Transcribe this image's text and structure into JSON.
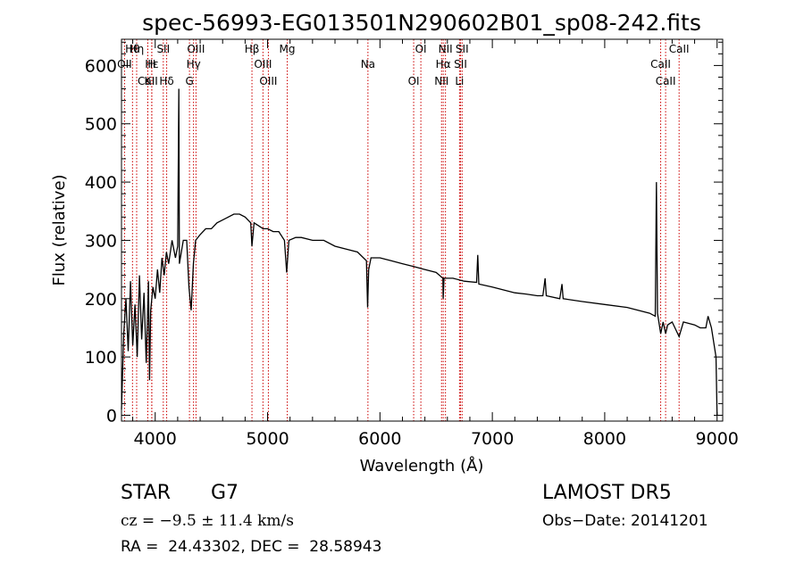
{
  "chart_data": {
    "type": "line",
    "title": "spec-56993-EG013501N290602B01_sp08-242.fits",
    "xlabel": "Wavelength (Å)",
    "ylabel": "Flux (relative)",
    "xlim": [
      3700,
      9050
    ],
    "ylim": [
      -10,
      645
    ],
    "x_ticks": [
      "4000",
      "5000",
      "6000",
      "7000",
      "8000",
      "9000"
    ],
    "y_ticks": [
      "0",
      "100",
      "200",
      "300",
      "400",
      "500",
      "600"
    ],
    "grid": false,
    "series": [
      {
        "points": [
          [
            3700,
            10
          ],
          [
            3720,
            140
          ],
          [
            3740,
            200
          ],
          [
            3760,
            110
          ],
          [
            3780,
            230
          ],
          [
            3800,
            120
          ],
          [
            3820,
            190
          ],
          [
            3840,
            100
          ],
          [
            3860,
            240
          ],
          [
            3880,
            130
          ],
          [
            3900,
            210
          ],
          [
            3920,
            90
          ],
          [
            3940,
            230
          ],
          [
            3950,
            60
          ],
          [
            3960,
            180
          ],
          [
            3980,
            220
          ],
          [
            4000,
            200
          ],
          [
            4020,
            250
          ],
          [
            4040,
            210
          ],
          [
            4060,
            270
          ],
          [
            4080,
            240
          ],
          [
            4100,
            280
          ],
          [
            4120,
            260
          ],
          [
            4150,
            300
          ],
          [
            4180,
            270
          ],
          [
            4200,
            290
          ],
          [
            4210,
            560
          ],
          [
            4215,
            260
          ],
          [
            4250,
            300
          ],
          [
            4280,
            300
          ],
          [
            4300,
            220
          ],
          [
            4320,
            180
          ],
          [
            4340,
            260
          ],
          [
            4360,
            300
          ],
          [
            4400,
            310
          ],
          [
            4450,
            320
          ],
          [
            4500,
            320
          ],
          [
            4550,
            330
          ],
          [
            4600,
            335
          ],
          [
            4650,
            340
          ],
          [
            4700,
            345
          ],
          [
            4750,
            345
          ],
          [
            4800,
            340
          ],
          [
            4850,
            330
          ],
          [
            4861,
            290
          ],
          [
            4880,
            330
          ],
          [
            4920,
            325
          ],
          [
            4960,
            320
          ],
          [
            5000,
            320
          ],
          [
            5050,
            315
          ],
          [
            5100,
            315
          ],
          [
            5150,
            300
          ],
          [
            5170,
            245
          ],
          [
            5190,
            300
          ],
          [
            5250,
            305
          ],
          [
            5300,
            305
          ],
          [
            5400,
            300
          ],
          [
            5500,
            300
          ],
          [
            5600,
            290
          ],
          [
            5700,
            285
          ],
          [
            5800,
            280
          ],
          [
            5880,
            265
          ],
          [
            5890,
            185
          ],
          [
            5900,
            250
          ],
          [
            5920,
            270
          ],
          [
            6000,
            270
          ],
          [
            6100,
            265
          ],
          [
            6200,
            260
          ],
          [
            6300,
            255
          ],
          [
            6400,
            250
          ],
          [
            6500,
            245
          ],
          [
            6560,
            235
          ],
          [
            6563,
            200
          ],
          [
            6570,
            235
          ],
          [
            6650,
            235
          ],
          [
            6750,
            230
          ],
          [
            6860,
            228
          ],
          [
            6870,
            275
          ],
          [
            6880,
            225
          ],
          [
            7000,
            220
          ],
          [
            7100,
            215
          ],
          [
            7200,
            210
          ],
          [
            7300,
            208
          ],
          [
            7400,
            205
          ],
          [
            7450,
            205
          ],
          [
            7470,
            235
          ],
          [
            7480,
            205
          ],
          [
            7600,
            200
          ],
          [
            7620,
            225
          ],
          [
            7630,
            200
          ],
          [
            7800,
            195
          ],
          [
            8000,
            190
          ],
          [
            8200,
            185
          ],
          [
            8400,
            175
          ],
          [
            8450,
            170
          ],
          [
            8460,
            400
          ],
          [
            8470,
            175
          ],
          [
            8498,
            140
          ],
          [
            8520,
            160
          ],
          [
            8542,
            140
          ],
          [
            8560,
            155
          ],
          [
            8600,
            160
          ],
          [
            8662,
            135
          ],
          [
            8700,
            160
          ],
          [
            8800,
            155
          ],
          [
            8850,
            150
          ],
          [
            8900,
            150
          ],
          [
            8920,
            170
          ],
          [
            8950,
            150
          ],
          [
            8990,
            100
          ],
          [
            9000,
            0
          ]
        ]
      }
    ],
    "lines": [
      {
        "label": "Hθ",
        "x": 3798
      },
      {
        "label": "OII",
        "x": 3727
      },
      {
        "label": "CaII",
        "x": 3934
      },
      {
        "label": "Hη",
        "x": 3835
      },
      {
        "label": "Hε",
        "x": 3970
      },
      {
        "label": "K",
        "x": 3934
      },
      {
        "label": "SII",
        "x": 4072
      },
      {
        "label": "H",
        "x": 3969
      },
      {
        "label": "Hδ",
        "x": 4102
      },
      {
        "label": "OIII",
        "x": 4363
      },
      {
        "label": "Hγ",
        "x": 4341
      },
      {
        "label": "G",
        "x": 4305
      },
      {
        "label": "Hβ",
        "x": 4861
      },
      {
        "label": "OIII",
        "x": 4959
      },
      {
        "label": "OIII",
        "x": 5007
      },
      {
        "label": "Mg",
        "x": 5175
      },
      {
        "label": "Na",
        "x": 5893
      },
      {
        "label": "OI",
        "x": 6300
      },
      {
        "label": "OI",
        "x": 6364
      },
      {
        "label": "Hα",
        "x": 6563
      },
      {
        "label": "NII",
        "x": 6548
      },
      {
        "label": "NII",
        "x": 6583
      },
      {
        "label": "SII",
        "x": 6717
      },
      {
        "label": "Li",
        "x": 6708
      },
      {
        "label": "SII",
        "x": 6731
      },
      {
        "label": "CaII",
        "x": 8498
      },
      {
        "label": "CaII",
        "x": 8542
      },
      {
        "label": "CaII",
        "x": 8662
      }
    ]
  },
  "info": {
    "class": "STAR",
    "subclass": "G7",
    "survey": "LAMOST DR5",
    "redshift": "cz = −9.5 ± 11.4 km/s",
    "obs_date": "Obs−Date: 20141201",
    "coords": "RA =  24.43302, DEC =  28.58943"
  },
  "colors": {
    "spectrum": "#000000",
    "lines": "#cc0000"
  }
}
